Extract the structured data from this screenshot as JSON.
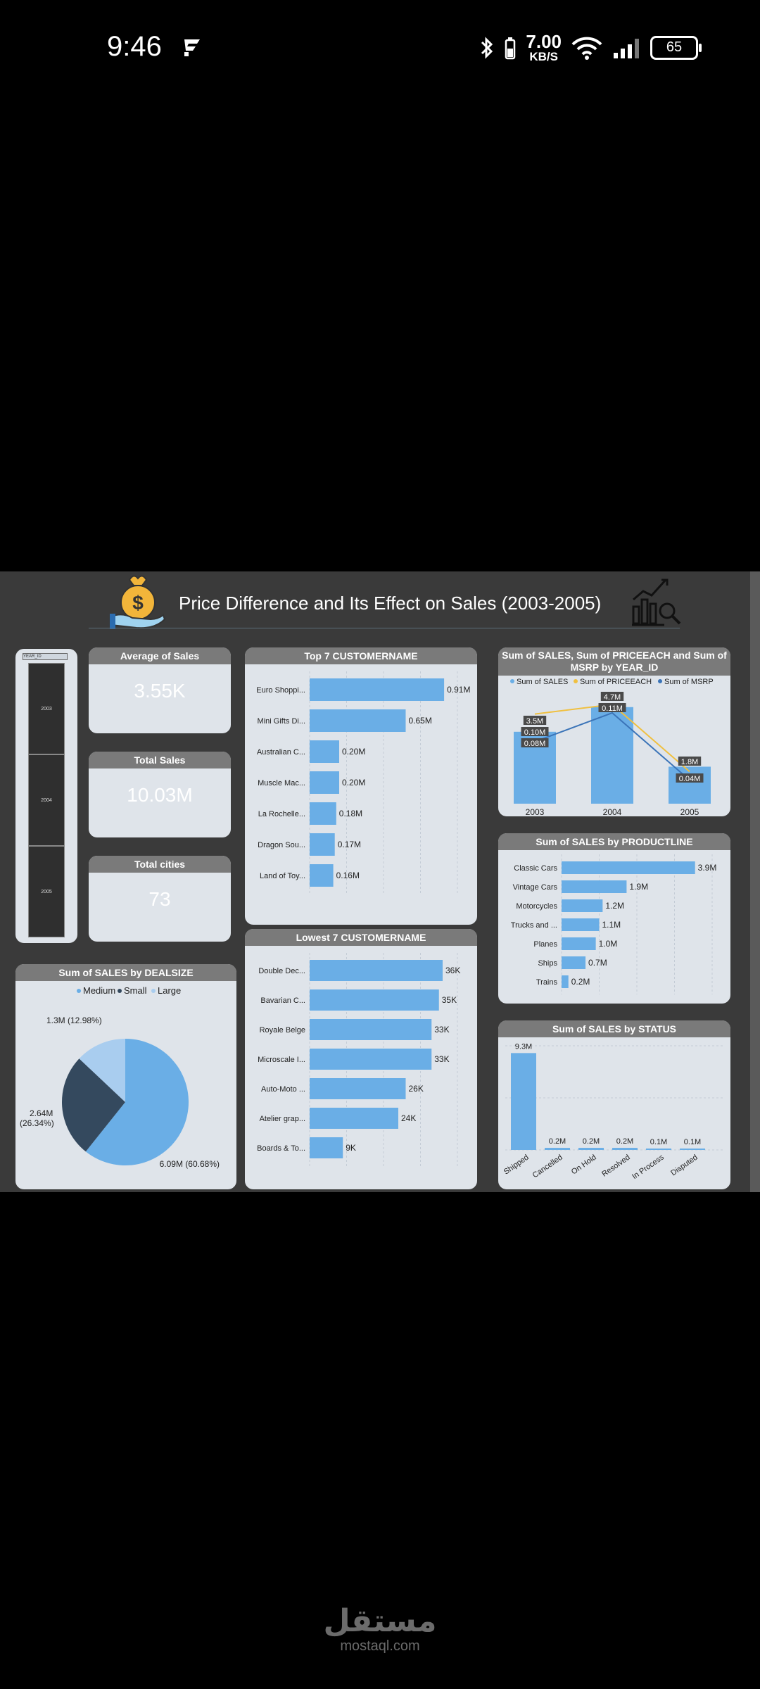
{
  "status": {
    "time": "9:46",
    "speed_value": "7.00",
    "speed_unit": "KB/S",
    "battery": "65"
  },
  "dashboard": {
    "title": "Price Difference and Its Effect on Sales (2003-2005)",
    "slicer": {
      "header": "YEAR_ID",
      "items": [
        "2003",
        "2004",
        "2005"
      ]
    },
    "kpis": {
      "avg_label": "Average of Sales",
      "avg_value": "3.55K",
      "total_label": "Total Sales",
      "total_value": "10.03M",
      "cities_label": "Total cities",
      "cities_value": "73"
    }
  },
  "chart_data": [
    {
      "id": "top7",
      "type": "bar",
      "orientation": "horizontal",
      "title": "Top 7 CUSTOMERNAME",
      "categories": [
        "Euro Shoppi...",
        "Mini Gifts Di...",
        "Australian C...",
        "Muscle Mac...",
        "La Rochelle...",
        "Dragon Sou...",
        "Land of Toy..."
      ],
      "values": [
        0.91,
        0.65,
        0.2,
        0.2,
        0.18,
        0.17,
        0.16
      ],
      "labels": [
        "0.91M",
        "0.65M",
        "0.20M",
        "0.20M",
        "0.18M",
        "0.17M",
        "0.16M"
      ],
      "xlim": [
        0,
        1.0
      ],
      "color": "#6aaee6"
    },
    {
      "id": "low7",
      "type": "bar",
      "orientation": "horizontal",
      "title": "Lowest 7 CUSTOMERNAME",
      "categories": [
        "Double Dec...",
        "Bavarian C...",
        "Royale Belge",
        "Microscale I...",
        "Auto-Moto ...",
        "Atelier grap...",
        "Boards & To..."
      ],
      "values": [
        36,
        35,
        33,
        33,
        26,
        24,
        9
      ],
      "labels": [
        "36K",
        "35K",
        "33K",
        "33K",
        "26K",
        "24K",
        "9K"
      ],
      "xlim": [
        0,
        40
      ],
      "color": "#6aaee6"
    },
    {
      "id": "deal",
      "type": "pie",
      "title": "Sum of SALES by DEALSIZE",
      "legend": [
        "Medium",
        "Small",
        "Large"
      ],
      "values": [
        6.09,
        2.64,
        1.3
      ],
      "labels": [
        "6.09M (60.68%)",
        "2.64M (26.34%)",
        "1.3M (12.98%)"
      ],
      "colors": [
        "#6aaee6",
        "#34495e",
        "#a9cdef"
      ]
    },
    {
      "id": "year",
      "type": "bar",
      "title": "Sum of SALES, Sum of PRICEEACH and Sum of MSRP by YEAR_ID",
      "categories": [
        "2003",
        "2004",
        "2005"
      ],
      "legend": [
        "Sum of SALES",
        "Sum of PRICEEACH",
        "Sum of MSRP"
      ],
      "series": [
        {
          "name": "Sum of SALES",
          "values": [
            3.5,
            4.7,
            1.8
          ],
          "labels": [
            "3.5M",
            "4.7M",
            "1.8M"
          ],
          "color": "#6aaee6"
        },
        {
          "name": "Sum of PRICEEACH",
          "values": [
            0.1,
            0.11,
            0.04
          ],
          "labels": [
            "0.10M",
            "0.11M",
            "0.04M"
          ],
          "color": "#f0c040"
        },
        {
          "name": "Sum of MSRP",
          "values": [
            0.08,
            0.11,
            0.04
          ],
          "labels": [
            "0.08M",
            "",
            ""
          ],
          "color": "#3b74b8"
        }
      ],
      "legend_position": "top"
    },
    {
      "id": "product",
      "type": "bar",
      "orientation": "horizontal",
      "title": "Sum of SALES by PRODUCTLINE",
      "categories": [
        "Classic Cars",
        "Vintage Cars",
        "Motorcycles",
        "Trucks and ...",
        "Planes",
        "Ships",
        "Trains"
      ],
      "values": [
        3.9,
        1.9,
        1.2,
        1.1,
        1.0,
        0.7,
        0.2
      ],
      "labels": [
        "3.9M",
        "1.9M",
        "1.2M",
        "1.1M",
        "1.0M",
        "0.7M",
        "0.2M"
      ],
      "xlim": [
        0,
        4.4
      ],
      "color": "#6aaee6"
    },
    {
      "id": "status",
      "type": "bar",
      "title": "Sum of SALES by STATUS",
      "categories": [
        "Shipped",
        "Cancelled",
        "On Hold",
        "Resolved",
        "In Process",
        "Disputed"
      ],
      "values": [
        9.3,
        0.2,
        0.2,
        0.2,
        0.1,
        0.1
      ],
      "labels": [
        "9.3M",
        "0.2M",
        "0.2M",
        "0.2M",
        "0.1M",
        "0.1M"
      ],
      "ylim": [
        0,
        10
      ],
      "color": "#6aaee6"
    }
  ],
  "watermark": {
    "arabic": "مستقل",
    "latin": "mostaql.com"
  }
}
